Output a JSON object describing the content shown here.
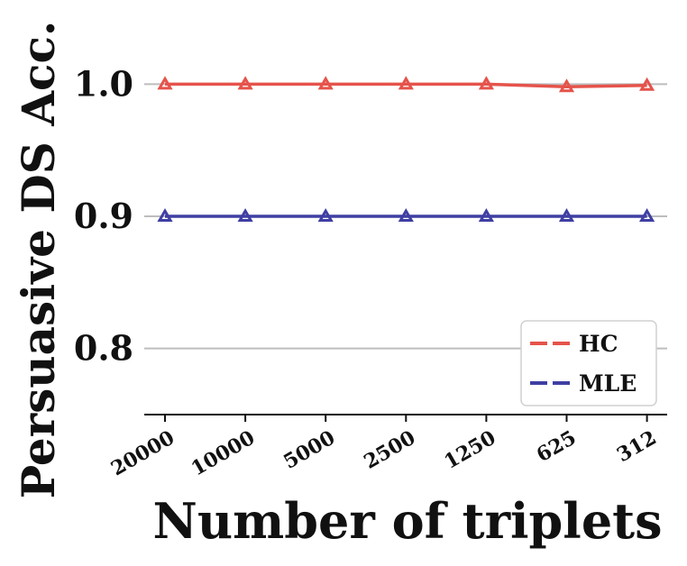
{
  "chart_data": {
    "type": "line",
    "title": "",
    "xlabel": "Number of triplets",
    "ylabel": "Persuasive DS Acc.",
    "categories": [
      "20000",
      "10000",
      "5000",
      "2500",
      "1250",
      "625",
      "312"
    ],
    "ylim": [
      0.75,
      1.05
    ],
    "yticks": [
      0.8,
      0.9,
      1.0
    ],
    "ytick_labels": [
      "0.8",
      "0.9",
      "1.0"
    ],
    "grid": "horizontal",
    "legend_position": "lower-right",
    "marker": "triangle",
    "series": [
      {
        "name": "HC",
        "color": "#e5534b",
        "values": [
          1.0,
          1.0,
          1.0,
          1.0,
          1.0,
          0.998,
          0.999
        ]
      },
      {
        "name": "MLE",
        "color": "#3f3fa3",
        "values": [
          0.9,
          0.9,
          0.9,
          0.9,
          0.9,
          0.9,
          0.9
        ]
      }
    ]
  }
}
